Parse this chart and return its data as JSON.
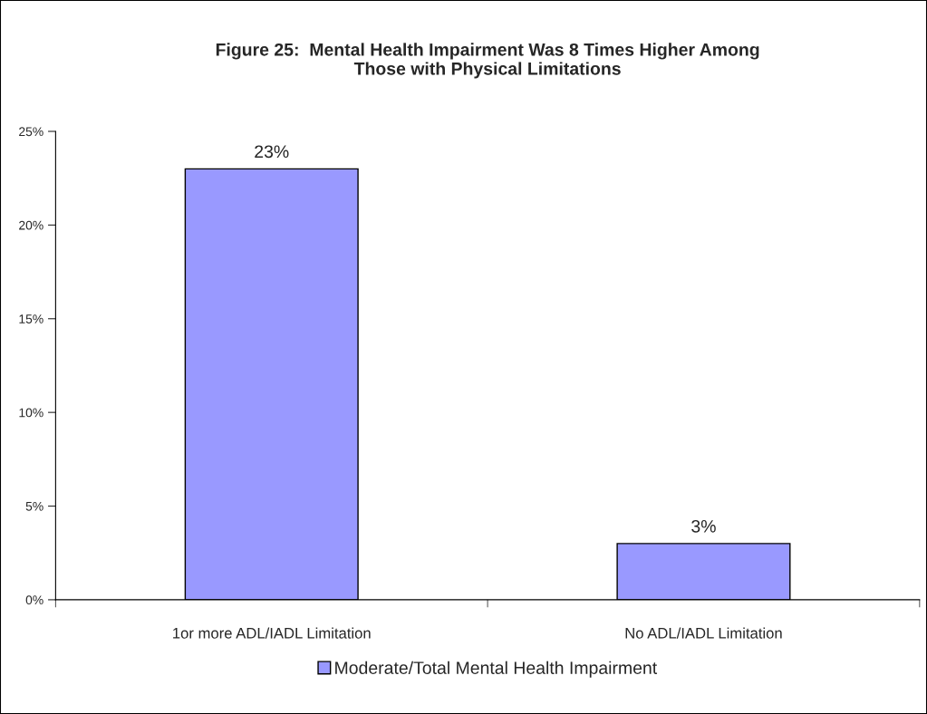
{
  "chart_data": {
    "type": "bar",
    "title": "Figure 25:  Mental Health Impairment Was 8 Times Higher Among\nThose with Physical Limitations",
    "categories": [
      "1or more ADL/IADL Limitation",
      "No ADL/IADL Limitation"
    ],
    "series": [
      {
        "name": "Moderate/Total Mental Health Impairment",
        "color": "#9999ff",
        "values": [
          23,
          3
        ],
        "value_labels": [
          "23%",
          "3%"
        ]
      }
    ],
    "ylim": [
      0,
      25
    ],
    "yticks": [
      {
        "value": 0,
        "label": "0%"
      },
      {
        "value": 5,
        "label": "5%"
      },
      {
        "value": 10,
        "label": "10%"
      },
      {
        "value": 15,
        "label": "15%"
      },
      {
        "value": 20,
        "label": "20%"
      },
      {
        "value": 25,
        "label": "25%"
      }
    ],
    "grid": false,
    "legend": "bottom"
  }
}
